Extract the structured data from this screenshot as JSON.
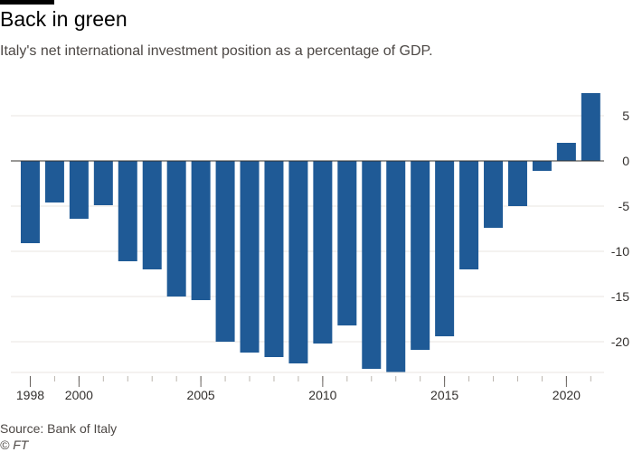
{
  "title": "Back in green",
  "subtitle": "Italy's net international investment position as a percentage of GDP.",
  "source": "Source: Bank of Italy",
  "credit": "© FT",
  "colors": {
    "bar": "#1f5a96",
    "grid": "#e8e4e0",
    "zero_line": "#33302e",
    "tick_text": "#33302e"
  },
  "chart_data": {
    "type": "bar",
    "title": "Back in green",
    "subtitle": "Italy's net international investment position as a percentage of GDP.",
    "xlabel": "",
    "ylabel": "",
    "categories": [
      1998,
      1999,
      2000,
      2001,
      2002,
      2003,
      2004,
      2005,
      2006,
      2007,
      2008,
      2009,
      2010,
      2011,
      2012,
      2013,
      2014,
      2015,
      2016,
      2017,
      2018,
      2019,
      2020,
      2021
    ],
    "values": [
      -9.1,
      -4.6,
      -6.4,
      -4.9,
      -11.1,
      -12.0,
      -15.0,
      -15.4,
      -20.0,
      -21.2,
      -21.7,
      -22.4,
      -20.2,
      -18.2,
      -23.0,
      -23.4,
      -20.9,
      -19.4,
      -12.0,
      -7.4,
      -5.0,
      -1.1,
      2.0,
      7.5
    ],
    "ylim": [
      -23.5,
      8
    ],
    "y_ticks": [
      5,
      0,
      -5,
      -10,
      -15,
      -20
    ],
    "y_tick_labels": [
      "5",
      "0",
      "-5",
      "-10",
      "-15",
      "-20"
    ],
    "x_ticks": [
      1998,
      2000,
      2005,
      2010,
      2015,
      2020
    ],
    "x_tick_labels": [
      "1998",
      "2000",
      "2005",
      "2010",
      "2015",
      "2020"
    ],
    "y_axis_side": "right",
    "grid": true,
    "legend": "none"
  }
}
